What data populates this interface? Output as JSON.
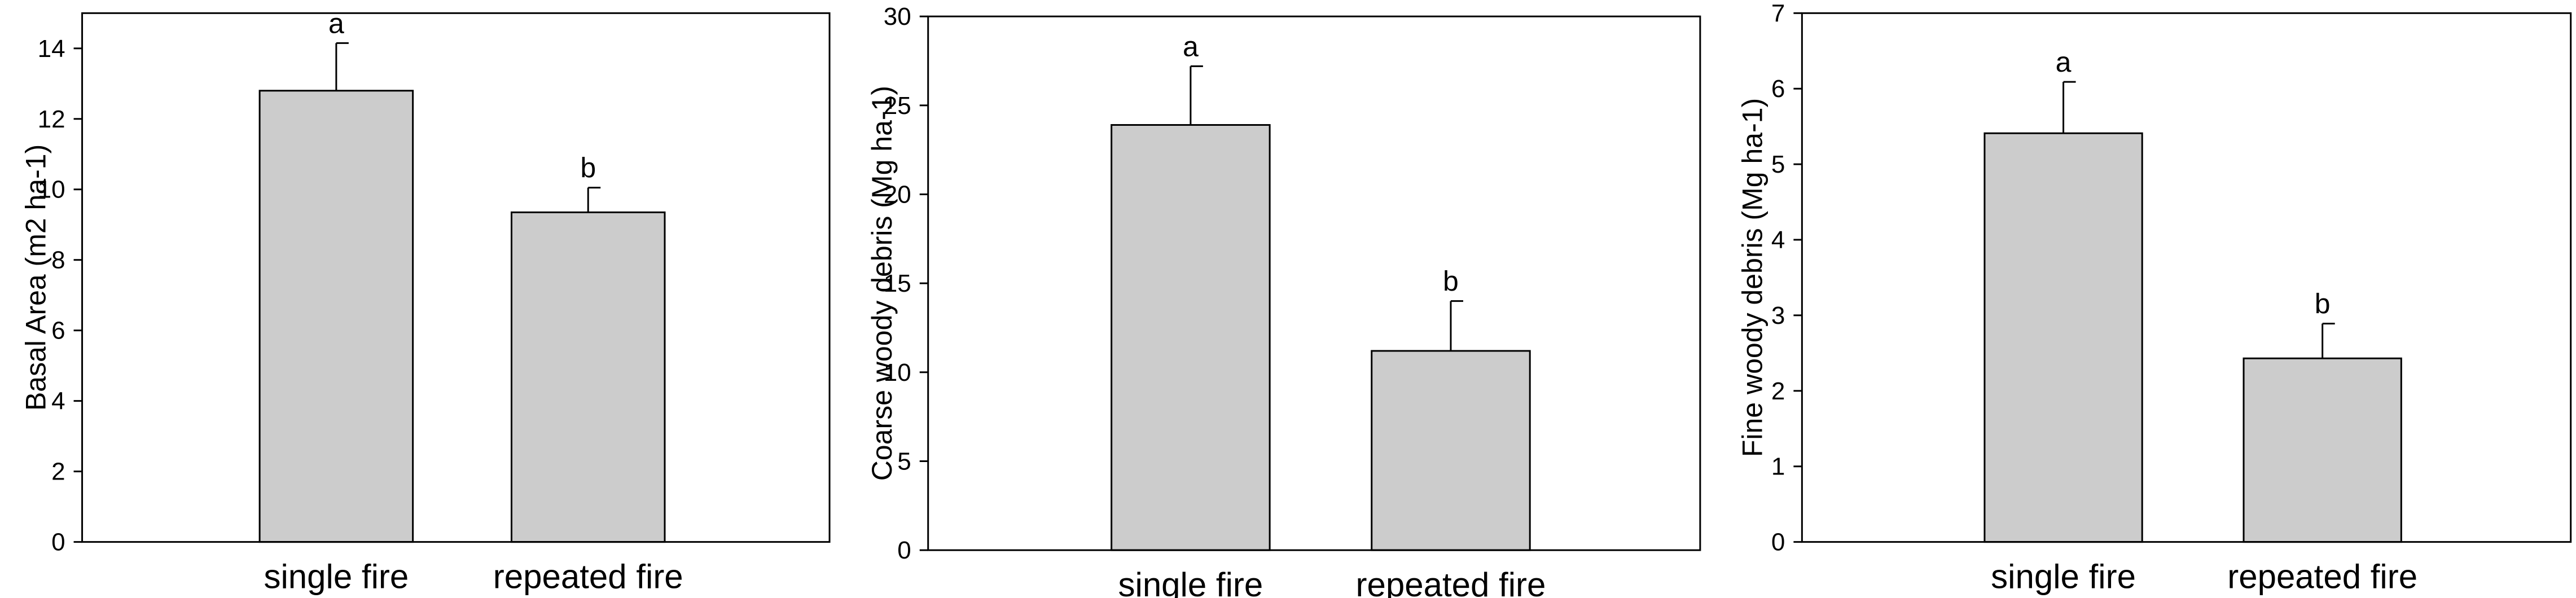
{
  "chart_data": [
    {
      "type": "bar",
      "ylabel": "Basal Area (m2 ha-1)",
      "categories": [
        "single fire",
        "repeated fire"
      ],
      "values": [
        12.8,
        9.35
      ],
      "errors": [
        1.35,
        0.7
      ],
      "significance_letters": [
        "a",
        "b"
      ],
      "color": "#cccccc",
      "ylim": [
        0,
        15
      ],
      "yticks": [
        0,
        2,
        4,
        6,
        8,
        10,
        12,
        14
      ]
    },
    {
      "type": "bar",
      "ylabel": "Coarse woody debris (Mg ha-1)",
      "categories": [
        "single fire",
        "repeated fire"
      ],
      "values": [
        23.9,
        11.2
      ],
      "errors": [
        3.3,
        2.8
      ],
      "significance_letters": [
        "a",
        "b"
      ],
      "color": "#cccccc",
      "ylim": [
        0,
        30
      ],
      "yticks": [
        0,
        5,
        10,
        15,
        20,
        25,
        30
      ]
    },
    {
      "type": "bar",
      "ylabel": "Fine woody debris (Mg ha-1)",
      "categories": [
        "single fire",
        "repeated fire"
      ],
      "values": [
        5.41,
        2.43
      ],
      "errors": [
        0.68,
        0.46
      ],
      "significance_letters": [
        "a",
        "b"
      ],
      "color": "#cccccc",
      "ylim": [
        0,
        7
      ],
      "yticks": [
        0,
        1,
        2,
        3,
        4,
        5,
        6,
        7
      ]
    }
  ]
}
